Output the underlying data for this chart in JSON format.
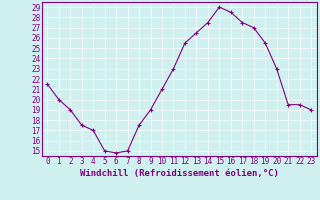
{
  "x": [
    0,
    1,
    2,
    3,
    4,
    5,
    6,
    7,
    8,
    9,
    10,
    11,
    12,
    13,
    14,
    15,
    16,
    17,
    18,
    19,
    20,
    21,
    22,
    23
  ],
  "y": [
    21.5,
    20.0,
    19.0,
    17.5,
    17.0,
    15.0,
    14.8,
    15.0,
    17.5,
    19.0,
    21.0,
    23.0,
    25.5,
    26.5,
    27.5,
    29.0,
    28.5,
    27.5,
    27.0,
    25.5,
    23.0,
    19.5,
    19.5,
    19.0
  ],
  "line_color": "#800080",
  "marker": "+",
  "marker_size": 3,
  "linewidth": 0.8,
  "bg_color": "#d0f0f0",
  "grid_color": "#ffffff",
  "xlabel": "Windchill (Refroidissement éolien,°C)",
  "xlabel_fontsize": 6.5,
  "tick_fontsize": 5.5,
  "ylim": [
    14.5,
    29.5
  ],
  "xlim": [
    -0.5,
    23.5
  ],
  "yticks": [
    15,
    16,
    17,
    18,
    19,
    20,
    21,
    22,
    23,
    24,
    25,
    26,
    27,
    28,
    29
  ],
  "xticks": [
    0,
    1,
    2,
    3,
    4,
    5,
    6,
    7,
    8,
    9,
    10,
    11,
    12,
    13,
    14,
    15,
    16,
    17,
    18,
    19,
    20,
    21,
    22,
    23
  ],
  "spine_color": "#800080"
}
